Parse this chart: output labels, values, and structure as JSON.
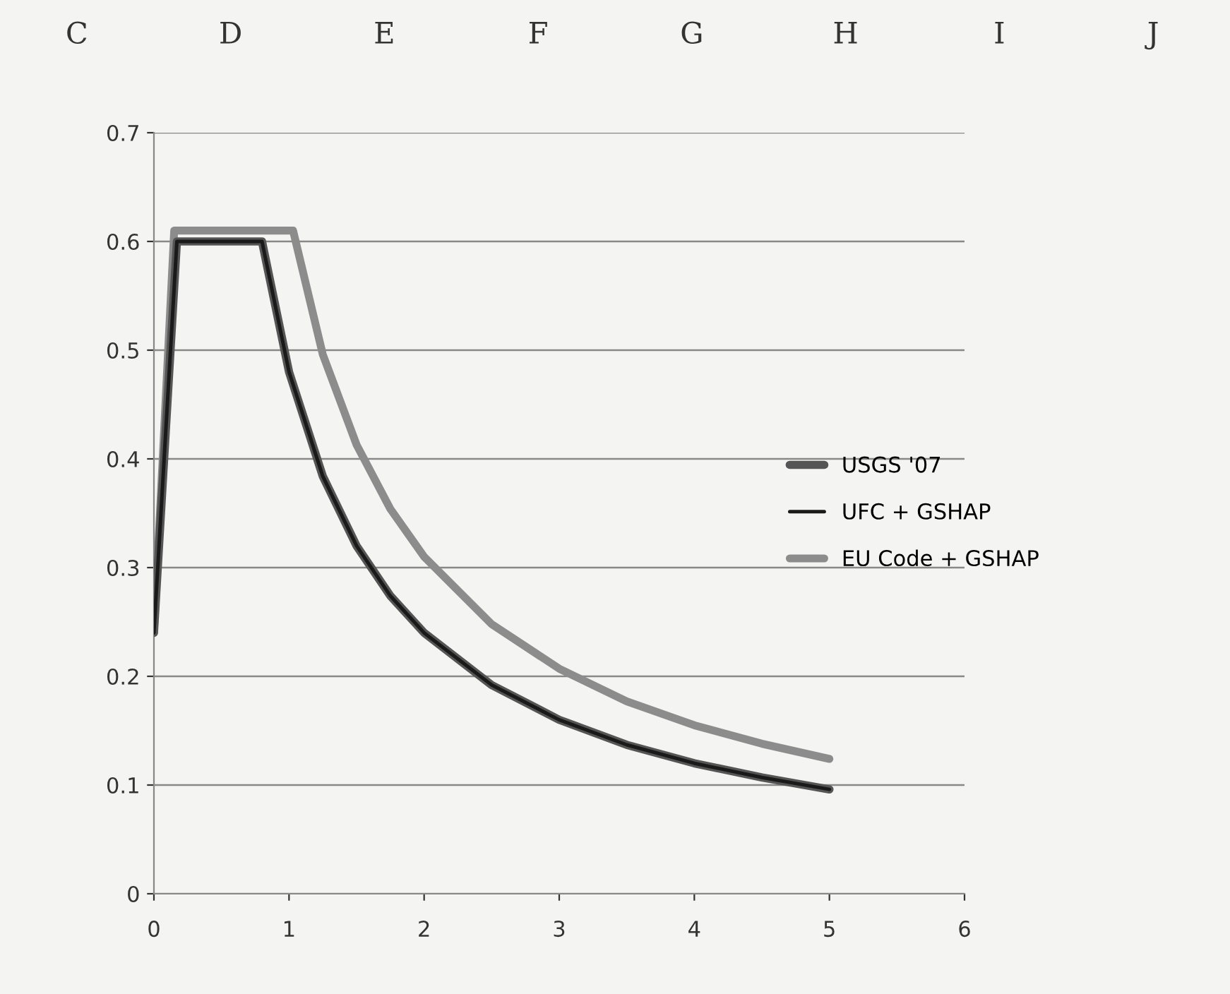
{
  "chart_data": {
    "type": "line",
    "x": [
      0,
      0.17,
      0.8,
      1,
      1.25,
      1.5,
      1.75,
      2,
      2.5,
      3,
      3.5,
      4,
      4.5,
      5
    ],
    "series": [
      {
        "name": "USGS '07",
        "color": "#555555",
        "values": [
          0.24,
          0.6,
          0.6,
          0.48,
          0.384,
          0.32,
          0.274,
          0.24,
          0.192,
          0.16,
          0.137,
          0.12,
          0.107,
          0.096
        ]
      },
      {
        "name": "UFC + GSHAP",
        "color": "#1a1a1a",
        "values": [
          0.24,
          0.6,
          0.6,
          0.48,
          0.384,
          0.32,
          0.274,
          0.24,
          0.192,
          0.16,
          0.137,
          0.12,
          0.107,
          0.096
        ]
      },
      {
        "name": "EU Code + GSHAP",
        "color": "#8c8c8c",
        "x": [
          0,
          0.15,
          1.03,
          1.25,
          1.5,
          1.75,
          2,
          2.5,
          3,
          3.5,
          4,
          4.5,
          5
        ],
        "values": [
          0.24,
          0.61,
          0.61,
          0.496,
          0.413,
          0.354,
          0.31,
          0.248,
          0.207,
          0.177,
          0.155,
          0.138,
          0.124
        ]
      }
    ],
    "xlim": [
      0,
      6
    ],
    "xticks": [
      0,
      1,
      2,
      3,
      4,
      5,
      6
    ],
    "ylim": [
      0,
      0.7
    ],
    "yticks": [
      0,
      0.1,
      0.2,
      0.3,
      0.4,
      0.5,
      0.6,
      0.7
    ],
    "grid": "y",
    "legend": "right",
    "marker": "none",
    "line_style": "solid",
    "annotations": [
      "C",
      "D",
      "E",
      "F",
      "G",
      "H",
      "I",
      "J"
    ]
  }
}
